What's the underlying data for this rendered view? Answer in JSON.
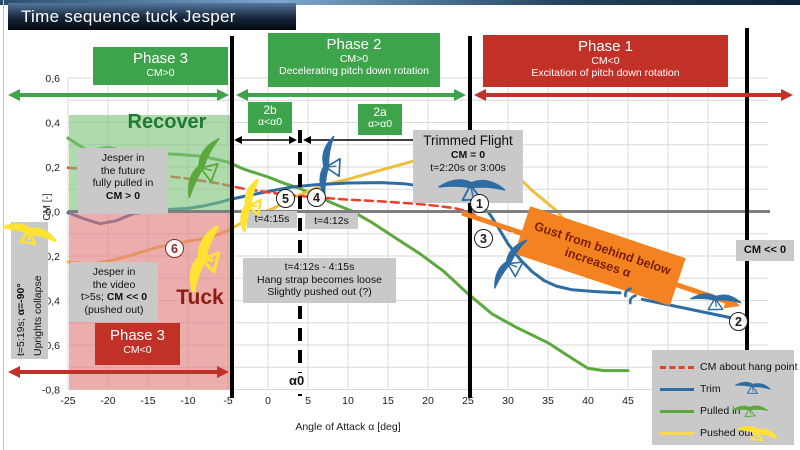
{
  "title": "Time sequence tuck Jesper",
  "colors": {
    "green_box": "#3EA44B",
    "red_box": "#C23127",
    "gray_box": "#C9C9C9",
    "trim": "#2E6DA4",
    "pulled_in": "#5BA83C",
    "pushed_out": "#EFBE3A",
    "cm_hang": "#E8402A",
    "gust_orange": "#F58220",
    "recover_green": "#1F7A2E",
    "tuck_red": "#8B1D12",
    "region_green": "#7CC47C",
    "region_red": "#E07A7A",
    "zero_line": "#7f7f7f",
    "grid": "#d9d9d9",
    "yellow_hand": "#FFE232",
    "circle6_red": "#8B2A2A"
  },
  "phases": {
    "p3_top": {
      "title": "Phase 3",
      "sub": "CM>0"
    },
    "p2": {
      "title": "Phase 2",
      "sub1": "CM>0",
      "sub2": "Decelerating pitch down rotation"
    },
    "p1": {
      "title": "Phase 1",
      "sub1": "CM<0",
      "sub2": "Excitation of pitch down rotation"
    },
    "p3_bottom": {
      "title": "Phase 3",
      "sub": "CM<0"
    }
  },
  "zones": {
    "b2": {
      "title": "2b",
      "sub": "α<α0"
    },
    "a2": {
      "title": "2a",
      "sub": "α>α0"
    },
    "recover": "Recover",
    "tuck": "Tuck",
    "alpha0": "α0"
  },
  "annotations": {
    "trimmed": {
      "l1": "Trimmed Flight",
      "l2": "CM = 0",
      "l3": "t=2:20s or 3:00s"
    },
    "future": {
      "l1": "Jesper in",
      "l2": "the future",
      "l3": "fully pulled in",
      "l4": "CM > 0"
    },
    "video": {
      "l1": "Jesper in",
      "l2": "the video",
      "l3_pre": "t>5s; ",
      "l3_bold": "CM << 0",
      "l4": "(pushed out)"
    },
    "hangstrap": {
      "l1": "t=4:12s - 4:15s",
      "l2": "Hang strap becomes loose",
      "l3": "Slightly pushed out (?)"
    },
    "t415": "t=4:15s",
    "t412": "t=4:12s",
    "gust": {
      "l1": "Gust from behind below",
      "l2": "increases α"
    },
    "cmll0": "CM << 0",
    "uprights": {
      "l1_pre": "t=5:19s; ",
      "l1_bold": "α=-90°",
      "l2": "Uprights collapse"
    }
  },
  "markers": {
    "n1": "1",
    "n2": "2",
    "n3": "3",
    "n4": "4",
    "n5": "5",
    "n6": "6"
  },
  "legend": {
    "items": [
      {
        "label": "CM about hang point",
        "style": "dashed",
        "color": "#E8402A"
      },
      {
        "label": "Trim",
        "style": "solid",
        "color": "#2E6DA4"
      },
      {
        "label": "Pulled in",
        "style": "solid",
        "color": "#5BA83C"
      },
      {
        "label": "Pushed out",
        "style": "solid",
        "color": "#FFD94D"
      }
    ]
  },
  "axis": {
    "x_label": "Angle of Attack α [deg]",
    "y_label": "CM [-]",
    "x_ticks": [
      "-25",
      "-20",
      "-15",
      "-10",
      "-5",
      "0",
      "5",
      "10",
      "15",
      "20",
      "25",
      "30",
      "35",
      "40",
      "45"
    ],
    "y_ticks": [
      "0,6",
      "0,4",
      "0,2",
      "0,0",
      "-0,2",
      "-0,4",
      "-0,6",
      "-0,8"
    ]
  },
  "chart_data": {
    "type": "line",
    "title": "Time sequence tuck Jesper",
    "xlabel": "Angle of Attack α [deg]",
    "ylabel": "CM [-]",
    "xlim": [
      -25,
      45
    ],
    "ylim": [
      -0.8,
      0.6
    ],
    "x_gridline_step": 5,
    "y_gridline_step": 0.1,
    "alpha0_deg": 4,
    "vertical_reference_lines_deg": [
      -4.5,
      25,
      60
    ],
    "axis_break_on_trim": true,
    "series": [
      {
        "name": "Pulled in",
        "color": "#5BA83C",
        "width": 3,
        "points": [
          [
            -25,
            0.33
          ],
          [
            -22.5,
            0.272
          ],
          [
            -20,
            0.288
          ],
          [
            -17.5,
            0.27
          ],
          [
            -14,
            0.262
          ],
          [
            -11,
            0.256
          ],
          [
            -8,
            0.247
          ],
          [
            -5,
            0.222
          ],
          [
            -3,
            0.19
          ],
          [
            0,
            0.155
          ],
          [
            2,
            0.127
          ],
          [
            4,
            0.103
          ],
          [
            6,
            0.072
          ],
          [
            8,
            0.038
          ],
          [
            10.5,
            0.002
          ],
          [
            13,
            -0.05
          ],
          [
            16,
            -0.12
          ],
          [
            19,
            -0.19
          ],
          [
            22,
            -0.27
          ],
          [
            25,
            -0.37
          ],
          [
            28,
            -0.46
          ],
          [
            31,
            -0.52
          ],
          [
            35,
            -0.59
          ],
          [
            38,
            -0.66
          ],
          [
            40,
            -0.705
          ],
          [
            42,
            -0.715
          ],
          [
            45,
            -0.715
          ]
        ]
      },
      {
        "name": "Pushed out",
        "color": "#EFBE3A",
        "width": 3,
        "points": [
          [
            -25,
            -0.227
          ],
          [
            -22,
            -0.237
          ],
          [
            -19,
            -0.215
          ],
          [
            -17,
            -0.195
          ],
          [
            -14,
            -0.162
          ],
          [
            -11,
            -0.14
          ],
          [
            -8,
            -0.122
          ],
          [
            -6,
            -0.1
          ],
          [
            -5,
            -0.085
          ],
          [
            -3,
            -0.045
          ],
          [
            -1,
            -0.012
          ],
          [
            1,
            0.02
          ],
          [
            3,
            0.06
          ],
          [
            5,
            0.09
          ],
          [
            7,
            0.12
          ],
          [
            10,
            0.145
          ],
          [
            13,
            0.175
          ],
          [
            16,
            0.205
          ],
          [
            18,
            0.225
          ],
          [
            21,
            0.247
          ],
          [
            24,
            0.258
          ],
          [
            27,
            0.252
          ],
          [
            29,
            0.22
          ],
          [
            31,
            0.165
          ],
          [
            33,
            0.095
          ],
          [
            35,
            0.035
          ],
          [
            36.2,
            0
          ],
          [
            37.3,
            -0.05
          ]
        ]
      },
      {
        "name": "Trim",
        "color": "#2E6DA4",
        "width": 3,
        "points": [
          [
            -25,
            -0.005
          ],
          [
            -23,
            -0.033
          ],
          [
            -21,
            -0.055
          ],
          [
            -19,
            -0.042
          ],
          [
            -17,
            -0.012
          ],
          [
            -15,
            0.002
          ],
          [
            -13,
            0.008
          ],
          [
            -10,
            0.014
          ],
          [
            -8,
            0.025
          ],
          [
            -6,
            0.042
          ],
          [
            -5,
            0.052
          ],
          [
            -3,
            0.068
          ],
          [
            0,
            0.09
          ],
          [
            3,
            0.11
          ],
          [
            6,
            0.12
          ],
          [
            10,
            0.128
          ],
          [
            14,
            0.13
          ],
          [
            17,
            0.125
          ],
          [
            20,
            0.11
          ],
          [
            22.5,
            0.085
          ],
          [
            24.5,
            0.055
          ],
          [
            26,
            0.025
          ],
          [
            27.5,
            0
          ],
          [
            28.5,
            -0.055
          ],
          [
            30,
            -0.145
          ],
          [
            31.5,
            -0.215
          ],
          [
            33,
            -0.27
          ],
          [
            34.5,
            -0.31
          ],
          [
            36,
            -0.335
          ],
          [
            38,
            -0.352
          ],
          [
            41,
            -0.36
          ],
          [
            44,
            -0.366
          ]
        ]
      },
      {
        "name": "Trim (beyond axis break)",
        "color": "#2E6DA4",
        "width": 3,
        "points": [
          [
            46.8,
            -0.395
          ],
          [
            59.5,
            -0.49
          ]
        ]
      },
      {
        "name": "CM about hang point",
        "color": "#E8402A",
        "width": 2.5,
        "dash": "8 5",
        "points": [
          [
            -25,
            0.197
          ],
          [
            -20,
            0.183
          ],
          [
            -15,
            0.168
          ],
          [
            -10,
            0.148
          ],
          [
            -6,
            0.125
          ],
          [
            -3,
            0.102
          ],
          [
            0,
            0.086
          ],
          [
            3,
            0.073
          ],
          [
            6,
            0.064
          ],
          [
            10,
            0.053
          ],
          [
            14,
            0.046
          ],
          [
            18,
            0.036
          ],
          [
            21,
            0.026
          ],
          [
            23.5,
            0.014
          ],
          [
            25,
            0
          ],
          [
            27,
            -0.038
          ],
          [
            29,
            -0.07
          ],
          [
            31,
            -0.096
          ],
          [
            33,
            -0.115
          ],
          [
            35,
            -0.145
          ],
          [
            37,
            -0.175
          ],
          [
            39,
            -0.196
          ],
          [
            41,
            -0.215
          ],
          [
            44,
            -0.247
          ]
        ]
      }
    ]
  }
}
